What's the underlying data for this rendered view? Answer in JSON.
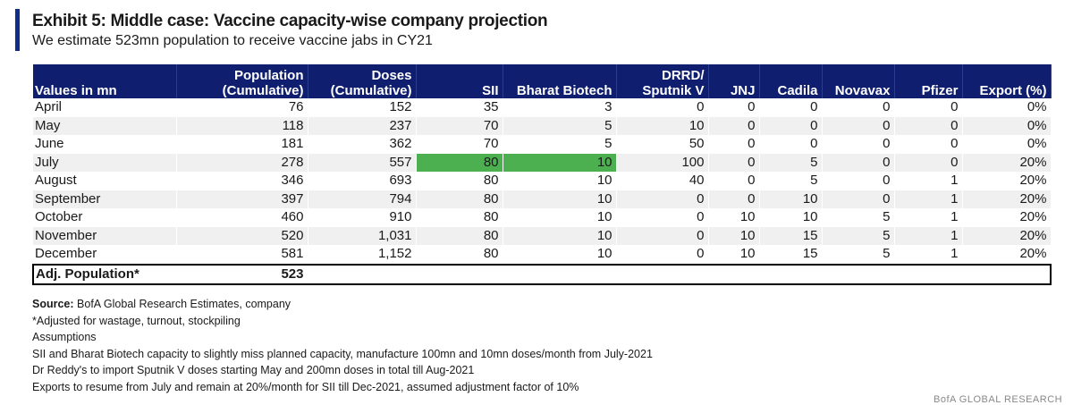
{
  "title": "Exhibit 5: Middle case: Vaccine capacity-wise company projection",
  "subtitle": "We estimate 523mn population to receive vaccine jabs in CY21",
  "table": {
    "headers": [
      {
        "line1": "",
        "line2": "Values in mn"
      },
      {
        "line1": "Population",
        "line2": "(Cumulative)"
      },
      {
        "line1": "Doses",
        "line2": "(Cumulative)"
      },
      {
        "line1": "",
        "line2": "SII"
      },
      {
        "line1": "",
        "line2": "Bharat Biotech"
      },
      {
        "line1": "DRRD/",
        "line2": "Sputnik V"
      },
      {
        "line1": "",
        "line2": "JNJ"
      },
      {
        "line1": "",
        "line2": "Cadila"
      },
      {
        "line1": "",
        "line2": "Novavax"
      },
      {
        "line1": "",
        "line2": "Pfizer"
      },
      {
        "line1": "",
        "line2": "Export (%)"
      }
    ],
    "rows": [
      [
        "April",
        "76",
        "152",
        "35",
        "3",
        "0",
        "0",
        "0",
        "0",
        "0",
        "0%"
      ],
      [
        "May",
        "118",
        "237",
        "70",
        "5",
        "10",
        "0",
        "0",
        "0",
        "0",
        "0%"
      ],
      [
        "June",
        "181",
        "362",
        "70",
        "5",
        "50",
        "0",
        "0",
        "0",
        "0",
        "0%"
      ],
      [
        "July",
        "278",
        "557",
        "80",
        "10",
        "100",
        "0",
        "5",
        "0",
        "0",
        "20%"
      ],
      [
        "August",
        "346",
        "693",
        "80",
        "10",
        "40",
        "0",
        "5",
        "0",
        "1",
        "20%"
      ],
      [
        "September",
        "397",
        "794",
        "80",
        "10",
        "0",
        "0",
        "10",
        "0",
        "1",
        "20%"
      ],
      [
        "October",
        "460",
        "910",
        "80",
        "10",
        "0",
        "10",
        "10",
        "5",
        "1",
        "20%"
      ],
      [
        "November",
        "520",
        "1,031",
        "80",
        "10",
        "0",
        "10",
        "15",
        "5",
        "1",
        "20%"
      ],
      [
        "December",
        "581",
        "1,152",
        "80",
        "10",
        "0",
        "10",
        "15",
        "5",
        "1",
        "20%"
      ]
    ],
    "adjusted": {
      "label": "Adj. Population*",
      "value": "523"
    },
    "highlight_color": "#4caf50"
  },
  "notes": {
    "source_label": "Source:",
    "source_text": "BofA Global Research Estimates, company",
    "footnote": "*Adjusted for wastage, turnout, stockpiling",
    "assumptions_title": "Assumptions",
    "assumptions": [
      "SII and Bharat Biotech capacity  to slightly miss planned capacity, manufacture 100mn  and 10mn doses/month  from July-2021",
      "Dr Reddy's  to import Sputnik  V doses  starting May and 200mn doses  in total till Aug-2021",
      "Exports to resume from July and remain at 20%/month for SII till Dec-2021, assumed  adjustment factor of 10%"
    ]
  },
  "footer_mark": "BofA GLOBAL RESEARCH",
  "colors": {
    "header_bg": "#0f1e6e",
    "accent": "#0f2e8c"
  }
}
